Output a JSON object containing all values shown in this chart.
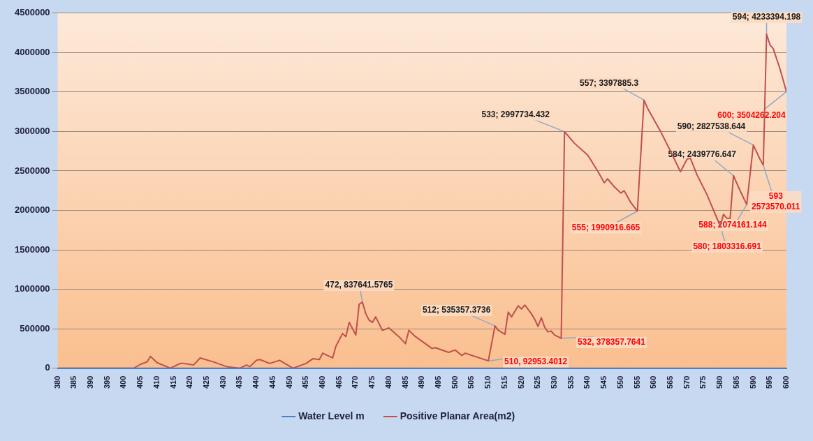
{
  "chart_data": {
    "type": "line",
    "xlim": [
      380,
      600
    ],
    "xticks": [
      380,
      385,
      390,
      395,
      400,
      405,
      410,
      415,
      420,
      425,
      430,
      435,
      440,
      445,
      450,
      455,
      460,
      465,
      470,
      475,
      480,
      485,
      490,
      495,
      500,
      505,
      510,
      515,
      520,
      525,
      530,
      535,
      540,
      545,
      550,
      555,
      560,
      565,
      570,
      575,
      580,
      585,
      590,
      595,
      600
    ],
    "ylim": [
      0,
      4500000
    ],
    "yticks": [
      0,
      500000,
      1000000,
      1500000,
      2000000,
      2500000,
      3000000,
      3500000,
      4000000,
      4500000
    ],
    "grid": "y",
    "legend": "bottom",
    "marker": "none",
    "series": [
      {
        "name": "Water Level m",
        "color": "#4f81bd",
        "x": [
          380,
          600
        ],
        "values": [
          0,
          0
        ]
      },
      {
        "name": "Positive Planar Area(m2)",
        "color": "#c0504d",
        "x": [
          380,
          403,
          405,
          407,
          408,
          410,
          414,
          417,
          418,
          421,
          423,
          427,
          431,
          435,
          437,
          438,
          440,
          441,
          444,
          447,
          451,
          455,
          457,
          459,
          460,
          463,
          464,
          466,
          467,
          468,
          470,
          471,
          472,
          473,
          474,
          475,
          476,
          478,
          480,
          483,
          485,
          486,
          488,
          493,
          494,
          498,
          500,
          502,
          503,
          510,
          512,
          513,
          515,
          516,
          517,
          519,
          520,
          521,
          523,
          524,
          525,
          526,
          527,
          528,
          529,
          530,
          531,
          532,
          533,
          536,
          540,
          543,
          545,
          546,
          548,
          550,
          551,
          553,
          555,
          557,
          558,
          560,
          562,
          565,
          568,
          570,
          571,
          573,
          576,
          578,
          580,
          581,
          582,
          583,
          584,
          586,
          588,
          590,
          592,
          593,
          594,
          595,
          596,
          598,
          600
        ],
        "values": [
          0,
          0,
          50000,
          80000,
          150000,
          70000,
          0,
          60000,
          60000,
          40000,
          130000,
          80000,
          20000,
          0,
          40000,
          20000,
          100000,
          110000,
          60000,
          100000,
          0,
          60000,
          120000,
          110000,
          190000,
          130000,
          280000,
          440000,
          400000,
          580000,
          420000,
          810000,
          837641.5765,
          690000,
          610000,
          580000,
          650000,
          480000,
          510000,
          400000,
          310000,
          480000,
          400000,
          250000,
          260000,
          200000,
          230000,
          160000,
          190000,
          92953.4012,
          535357.3736,
          480000,
          430000,
          710000,
          650000,
          790000,
          750000,
          800000,
          690000,
          620000,
          530000,
          640000,
          520000,
          460000,
          470000,
          420000,
          400000,
          378357.7641,
          2997734.432,
          2850000,
          2700000,
          2500000,
          2350000,
          2400000,
          2300000,
          2220000,
          2250000,
          2100000,
          1990916.665,
          3397885.3,
          3300000,
          3150000,
          3000000,
          2750000,
          2490000,
          2650000,
          2660000,
          2450000,
          2200000,
          2000000,
          1803316.691,
          1950000,
          1900000,
          1900000,
          2439776.647,
          2250000,
          2074161.144,
          2827538.644,
          2650000,
          2573570.011,
          4233394.198,
          4100000,
          4050000,
          3800000,
          3504262.204
        ]
      }
    ],
    "annotations": [
      {
        "text": "472, 837641.5765",
        "x": 472,
        "y": 837641.5765
      },
      {
        "text": "510, 92953.4012",
        "x": 510,
        "y": 92953.4012
      },
      {
        "text": "512; 535357.3736",
        "x": 512,
        "y": 535357.3736
      },
      {
        "text": "532, 378357.7641",
        "x": 532,
        "y": 378357.7641
      },
      {
        "text": "533; 2997734.432",
        "x": 533,
        "y": 2997734.432
      },
      {
        "text": "555; 1990916.665",
        "x": 555,
        "y": 1990916.665
      },
      {
        "text": "557; 3397885.3",
        "x": 557,
        "y": 3397885.3
      },
      {
        "text": "580; 1803316.691",
        "x": 580,
        "y": 1803316.691
      },
      {
        "text": "584; 2439776.647",
        "x": 584,
        "y": 2439776.647
      },
      {
        "text": "588; 2074161.144",
        "x": 588,
        "y": 2074161.144
      },
      {
        "text": "590; 2827538.644",
        "x": 590,
        "y": 2827538.644
      },
      {
        "text": "593\n2573570.011",
        "x": 593,
        "y": 2573570.011
      },
      {
        "text": "594; 4233394.198",
        "x": 594,
        "y": 4233394.198
      },
      {
        "text": "600; 3504262.204",
        "x": 600,
        "y": 3504262.204
      }
    ]
  }
}
